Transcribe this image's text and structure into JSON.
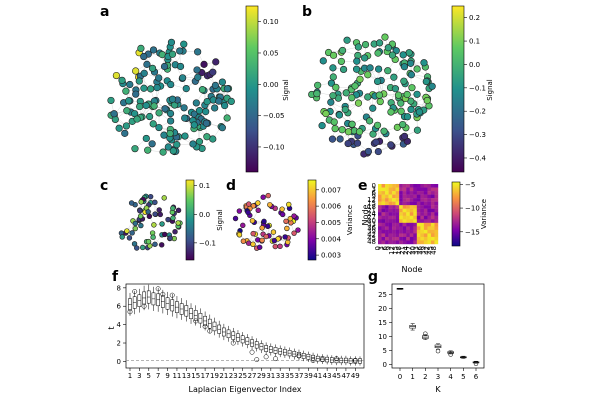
{
  "panel_labels": [
    "a",
    "b",
    "c",
    "d",
    "e",
    "f",
    "g"
  ],
  "colormaps": {
    "viridis": [
      "#440154",
      "#3b528b",
      "#21918c",
      "#5ec962",
      "#fde725"
    ],
    "plasma": [
      "#0d0887",
      "#7e03a8",
      "#cc4778",
      "#f89540",
      "#f0f921"
    ],
    "node_fill": "#2a9d8f",
    "edge_color": "#d0d0d0"
  },
  "chart_data": [
    {
      "panel": "a",
      "type": "scatter",
      "description_kind": "graph-signal",
      "colorbar": {
        "label": "Signal",
        "ticks": [
          "0.10",
          "0.05",
          "0.00",
          "−0.05",
          "−0.10"
        ],
        "tick_values": [
          0.1,
          0.05,
          0.0,
          -0.05,
          -0.1
        ],
        "range": [
          -0.14,
          0.125
        ],
        "cmap": "viridis"
      }
    },
    {
      "panel": "b",
      "type": "scatter",
      "description_kind": "graph-signal",
      "colorbar": {
        "label": "Signal",
        "ticks": [
          "0.2",
          "0.1",
          "0.0",
          "−0.1",
          "−0.2",
          "−0.3",
          "−0.4"
        ],
        "tick_values": [
          0.2,
          0.1,
          0.0,
          -0.1,
          -0.2,
          -0.3,
          -0.4
        ],
        "range": [
          -0.46,
          0.25
        ],
        "cmap": "viridis"
      }
    },
    {
      "panel": "c",
      "type": "scatter",
      "description_kind": "graph-signal",
      "colorbar": {
        "label": "Signal",
        "ticks": [
          "0.1",
          "0.0",
          "−0.1"
        ],
        "tick_values": [
          0.1,
          0.0,
          -0.1
        ],
        "range": [
          -0.16,
          0.12
        ],
        "cmap": "viridis"
      }
    },
    {
      "panel": "d",
      "type": "scatter",
      "description_kind": "graph-variance",
      "colorbar": {
        "label": "Variance",
        "ticks": [
          "0.007",
          "0.006",
          "0.005",
          "0.004",
          "0.003"
        ],
        "tick_values": [
          0.007,
          0.006,
          0.005,
          0.004,
          0.003
        ],
        "range": [
          0.0027,
          0.0076
        ],
        "cmap": "plasma"
      }
    },
    {
      "panel": "e",
      "type": "heatmap",
      "xlabel": "Node",
      "ylabel": "Node",
      "ytick_labels": [
        "0",
        "3",
        "6",
        "9",
        "12",
        "15",
        "18",
        "21",
        "24",
        "27",
        "30",
        "33",
        "36",
        "39",
        "42",
        "45",
        "48"
      ],
      "xtick_labels": [
        "0",
        "3",
        "6",
        "9",
        "12",
        "15",
        "18",
        "21",
        "24",
        "27",
        "30",
        "33",
        "36",
        "39",
        "42",
        "45",
        "48"
      ],
      "colorbar": {
        "label": "Variance",
        "ticks": [
          "−5",
          "−10",
          "−15"
        ],
        "tick_values": [
          -5,
          -10,
          -15
        ],
        "range": [
          -18,
          -4.5
        ],
        "cmap": "plasma"
      }
    },
    {
      "panel": "f",
      "type": "box",
      "xlabel": "Laplacian Eigenvector Index",
      "ylabel": "t",
      "ylim": [
        -0.5,
        8.2
      ],
      "ytick_labels": [
        "0",
        "2",
        "4",
        "6",
        "8"
      ],
      "ytick_values": [
        0,
        2,
        4,
        6,
        8
      ],
      "xtick_labels": [
        "1",
        "3",
        "5",
        "7",
        "9",
        "11",
        "13",
        "15",
        "17",
        "19",
        "21",
        "23",
        "25",
        "27",
        "29",
        "31",
        "33",
        "35",
        "37",
        "39",
        "41",
        "43",
        "45",
        "47",
        "49"
      ],
      "medians": [
        6.2,
        6.4,
        6.6,
        6.9,
        7.0,
        6.8,
        6.7,
        6.5,
        6.3,
        6.1,
        5.9,
        5.7,
        5.5,
        5.2,
        5.0,
        4.7,
        4.4,
        4.1,
        3.8,
        3.5,
        3.2,
        3.0,
        2.8,
        2.6,
        2.4,
        2.2,
        2.0,
        1.8,
        1.6,
        1.4,
        1.3,
        1.2,
        1.1,
        1.0,
        0.9,
        0.8,
        0.7,
        0.6,
        0.5,
        0.4,
        0.3,
        0.25,
        0.2,
        0.15,
        0.1,
        0.1,
        0.1,
        0.05,
        0.05,
        0.05
      ],
      "outliers": [
        [
          1,
          5.4
        ],
        [
          2,
          7.6
        ],
        [
          4,
          6.0
        ],
        [
          7,
          7.9
        ],
        [
          8,
          7.3
        ],
        [
          10,
          7.2
        ],
        [
          15,
          4.4
        ],
        [
          17,
          3.8
        ],
        [
          18,
          3.3
        ],
        [
          23,
          2.0
        ],
        [
          27,
          1.0
        ],
        [
          28,
          0.2
        ],
        [
          30,
          0.5
        ],
        [
          32,
          0.3
        ],
        [
          37,
          0.6
        ],
        [
          40,
          0.1
        ],
        [
          42,
          0.2
        ],
        [
          45,
          0.3
        ],
        [
          49,
          0.1
        ]
      ],
      "reference_line": 0.1
    },
    {
      "panel": "g",
      "type": "box",
      "xlabel": "K",
      "ylabel": "",
      "ylim": [
        -0.5,
        28
      ],
      "ytick_labels": [
        "0",
        "5",
        "10",
        "15",
        "20",
        "25"
      ],
      "ytick_values": [
        0,
        5,
        10,
        15,
        20,
        25
      ],
      "xtick_labels": [
        "0",
        "1",
        "2",
        "3",
        "4",
        "5",
        "6"
      ],
      "boxes": [
        {
          "k": 0,
          "median": 27.0,
          "q1": 26.8,
          "q3": 27.2,
          "low": 26.8,
          "high": 27.2
        },
        {
          "k": 1,
          "median": 13.5,
          "q1": 13.0,
          "q3": 14.0,
          "low": 12.3,
          "high": 14.6
        },
        {
          "k": 2,
          "median": 9.8,
          "q1": 9.3,
          "q3": 10.3,
          "low": 8.9,
          "high": 10.7
        },
        {
          "k": 3,
          "median": 6.5,
          "q1": 6.0,
          "q3": 7.0,
          "low": 5.5,
          "high": 7.4
        },
        {
          "k": 4,
          "median": 4.3,
          "q1": 4.0,
          "q3": 4.6,
          "low": 3.8,
          "high": 4.9
        },
        {
          "k": 5,
          "median": 2.6,
          "q1": 2.4,
          "q3": 2.8,
          "low": 2.2,
          "high": 3.0
        },
        {
          "k": 6,
          "median": 0.8,
          "q1": 0.6,
          "q3": 1.0,
          "low": 0.5,
          "high": 1.2
        }
      ],
      "outliers": [
        [
          2,
          11.0
        ],
        [
          3,
          4.8
        ],
        [
          4,
          3.6
        ],
        [
          6,
          0.3
        ]
      ]
    }
  ]
}
